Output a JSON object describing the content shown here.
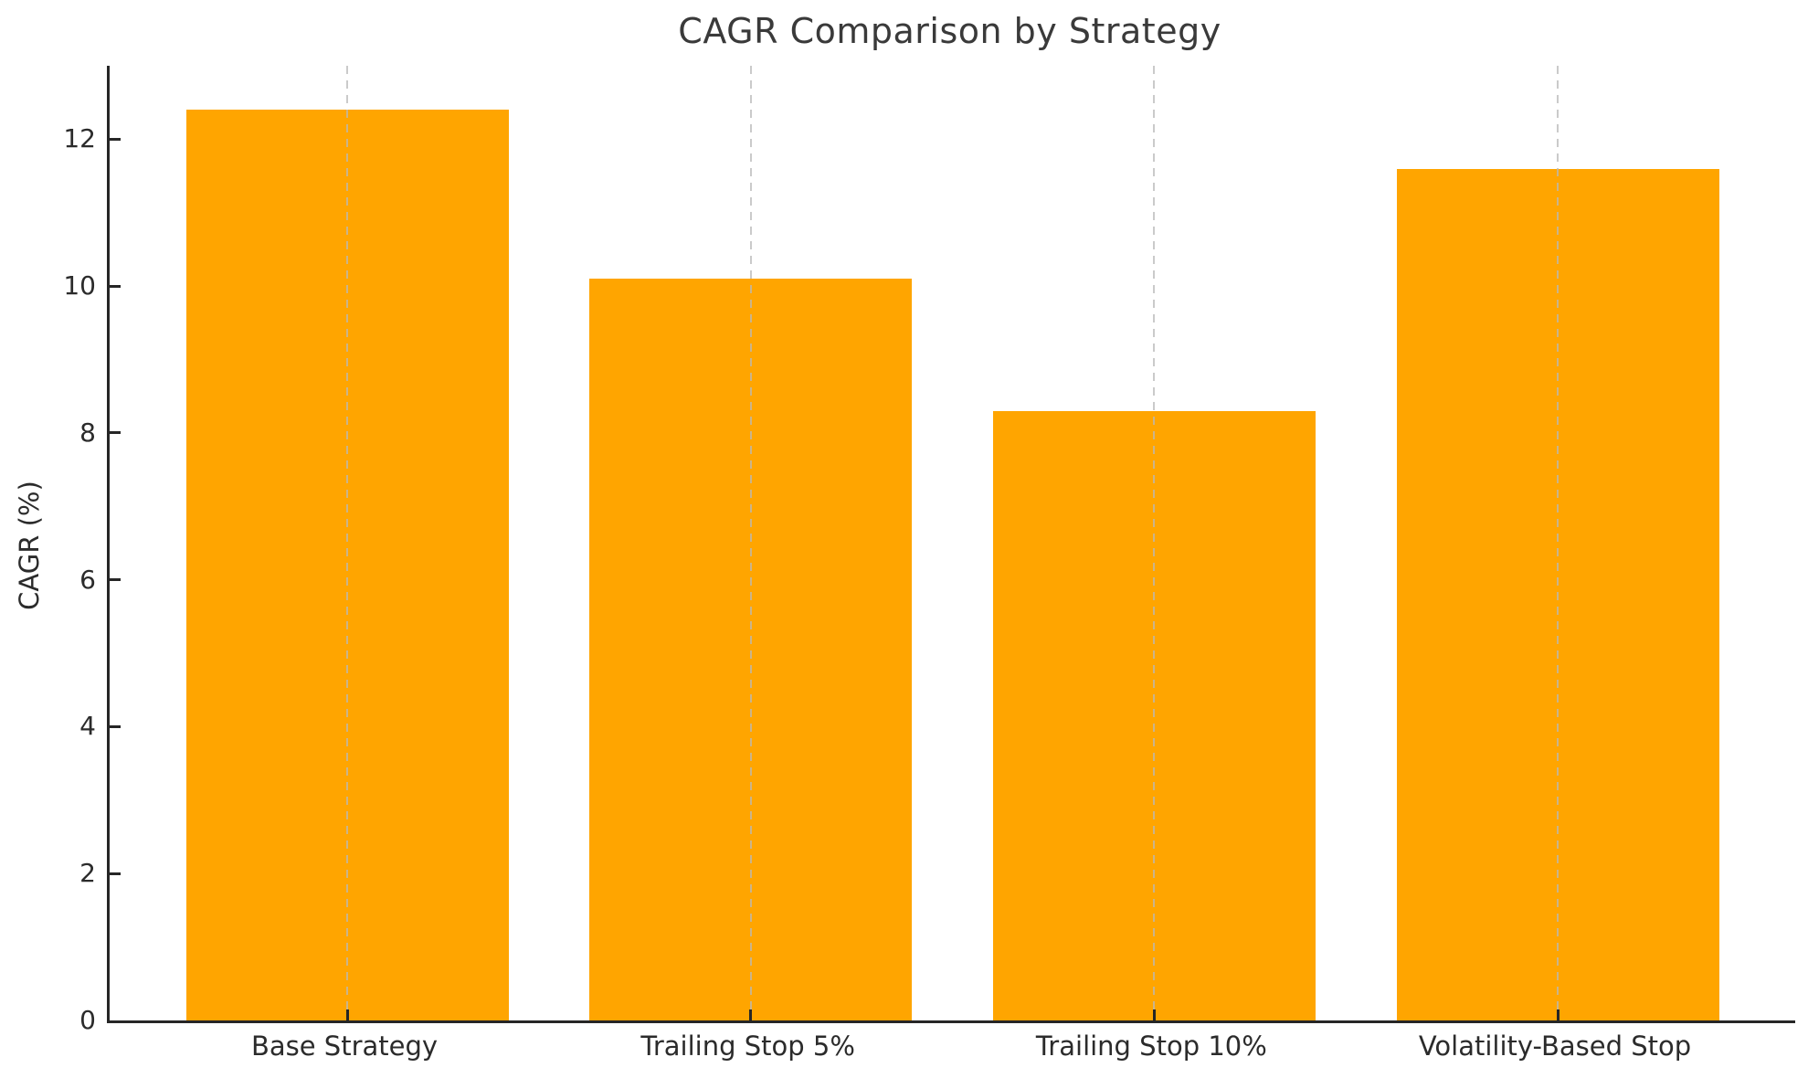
{
  "chart_data": {
    "type": "bar",
    "title": "CAGR Comparison by Strategy",
    "categories": [
      "Base Strategy",
      "Trailing Stop 5%",
      "Trailing Stop 10%",
      "Volatility-Based Stop"
    ],
    "values": [
      12.4,
      10.1,
      8.3,
      11.6
    ],
    "xlabel": "",
    "ylabel": "CAGR (%)",
    "ylim": [
      0,
      13
    ],
    "yticks": [
      0,
      2,
      4,
      6,
      8,
      10,
      12
    ],
    "bar_color": "#FFA500",
    "grid": "vertical dashed gridlines at each category center",
    "gridline_color": "#c9c9c9",
    "spine_color": "#262626",
    "legend": "none"
  }
}
